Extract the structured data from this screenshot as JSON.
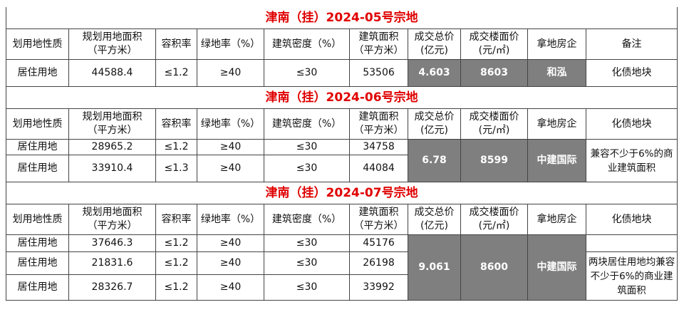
{
  "tables": [
    {
      "title": "津南（挂）2024-05号宗地",
      "headers": [
        "划用地性质",
        "规划用地面积\n（平方米）",
        "容积率",
        "绿地率（%）",
        "建筑密度（%）",
        "建筑面积\n（平方米）",
        "成交总价\n(亿元)",
        "成交楼面价\n(元/㎡)",
        "拿地房企",
        "备注"
      ],
      "rows": [
        [
          "居住用地",
          "44588.4",
          "≤1.2",
          "≥40",
          "≤30",
          "53506",
          "4.603",
          "8603",
          "和泓",
          "化债地块"
        ]
      ]
    },
    {
      "title": "津南（挂）2024-06号宗地",
      "headers": [
        "划用地性质",
        "规划用地面积\n（平方米）",
        "容积率",
        "绿地率（%）",
        "建筑密度（%）",
        "建筑面积\n（平方米）",
        "成交总价\n(亿元)",
        "成交楼面价\n(元/㎡)",
        "拿地房企",
        "化债地块"
      ],
      "rows": [
        [
          "居住用地",
          "28965.2",
          "≤1.2",
          "≥40",
          "≤30",
          "34758"
        ],
        [
          "居住用地",
          "33910.4",
          "≤1.3",
          "≥40",
          "≤30",
          "44084"
        ]
      ],
      "merged": {
        "total": "6.78",
        "price": "8599",
        "company": "中建国际",
        "note": "兼容不少于6%的商业建筑面积"
      }
    },
    {
      "title": "津南（挂）2024-07号宗地",
      "headers": [
        "划用地性质",
        "规划用地面积\n（平方米）",
        "容积率",
        "绿地率（%）",
        "建筑密度（%）",
        "建筑面积\n（平方米）",
        "成交总价\n(亿元)",
        "成交楼面价\n(元/㎡)",
        "拿地房企",
        "化债地块"
      ],
      "rows": [
        [
          "居住用地",
          "37646.3",
          "≤1.2",
          "≥40",
          "≤30",
          "45176"
        ],
        [
          "居住用地",
          "21831.6",
          "≤1.2",
          "≥40",
          "≤30",
          "26198"
        ],
        [
          "居住用地",
          "28326.7",
          "≤1.2",
          "≥40",
          "≤30",
          "33992"
        ]
      ],
      "merged": {
        "total": "9.061",
        "price": "8600",
        "company": "中建国际",
        "note": "两块居住用地均兼容不少于6%的商业建筑面积"
      }
    }
  ]
}
